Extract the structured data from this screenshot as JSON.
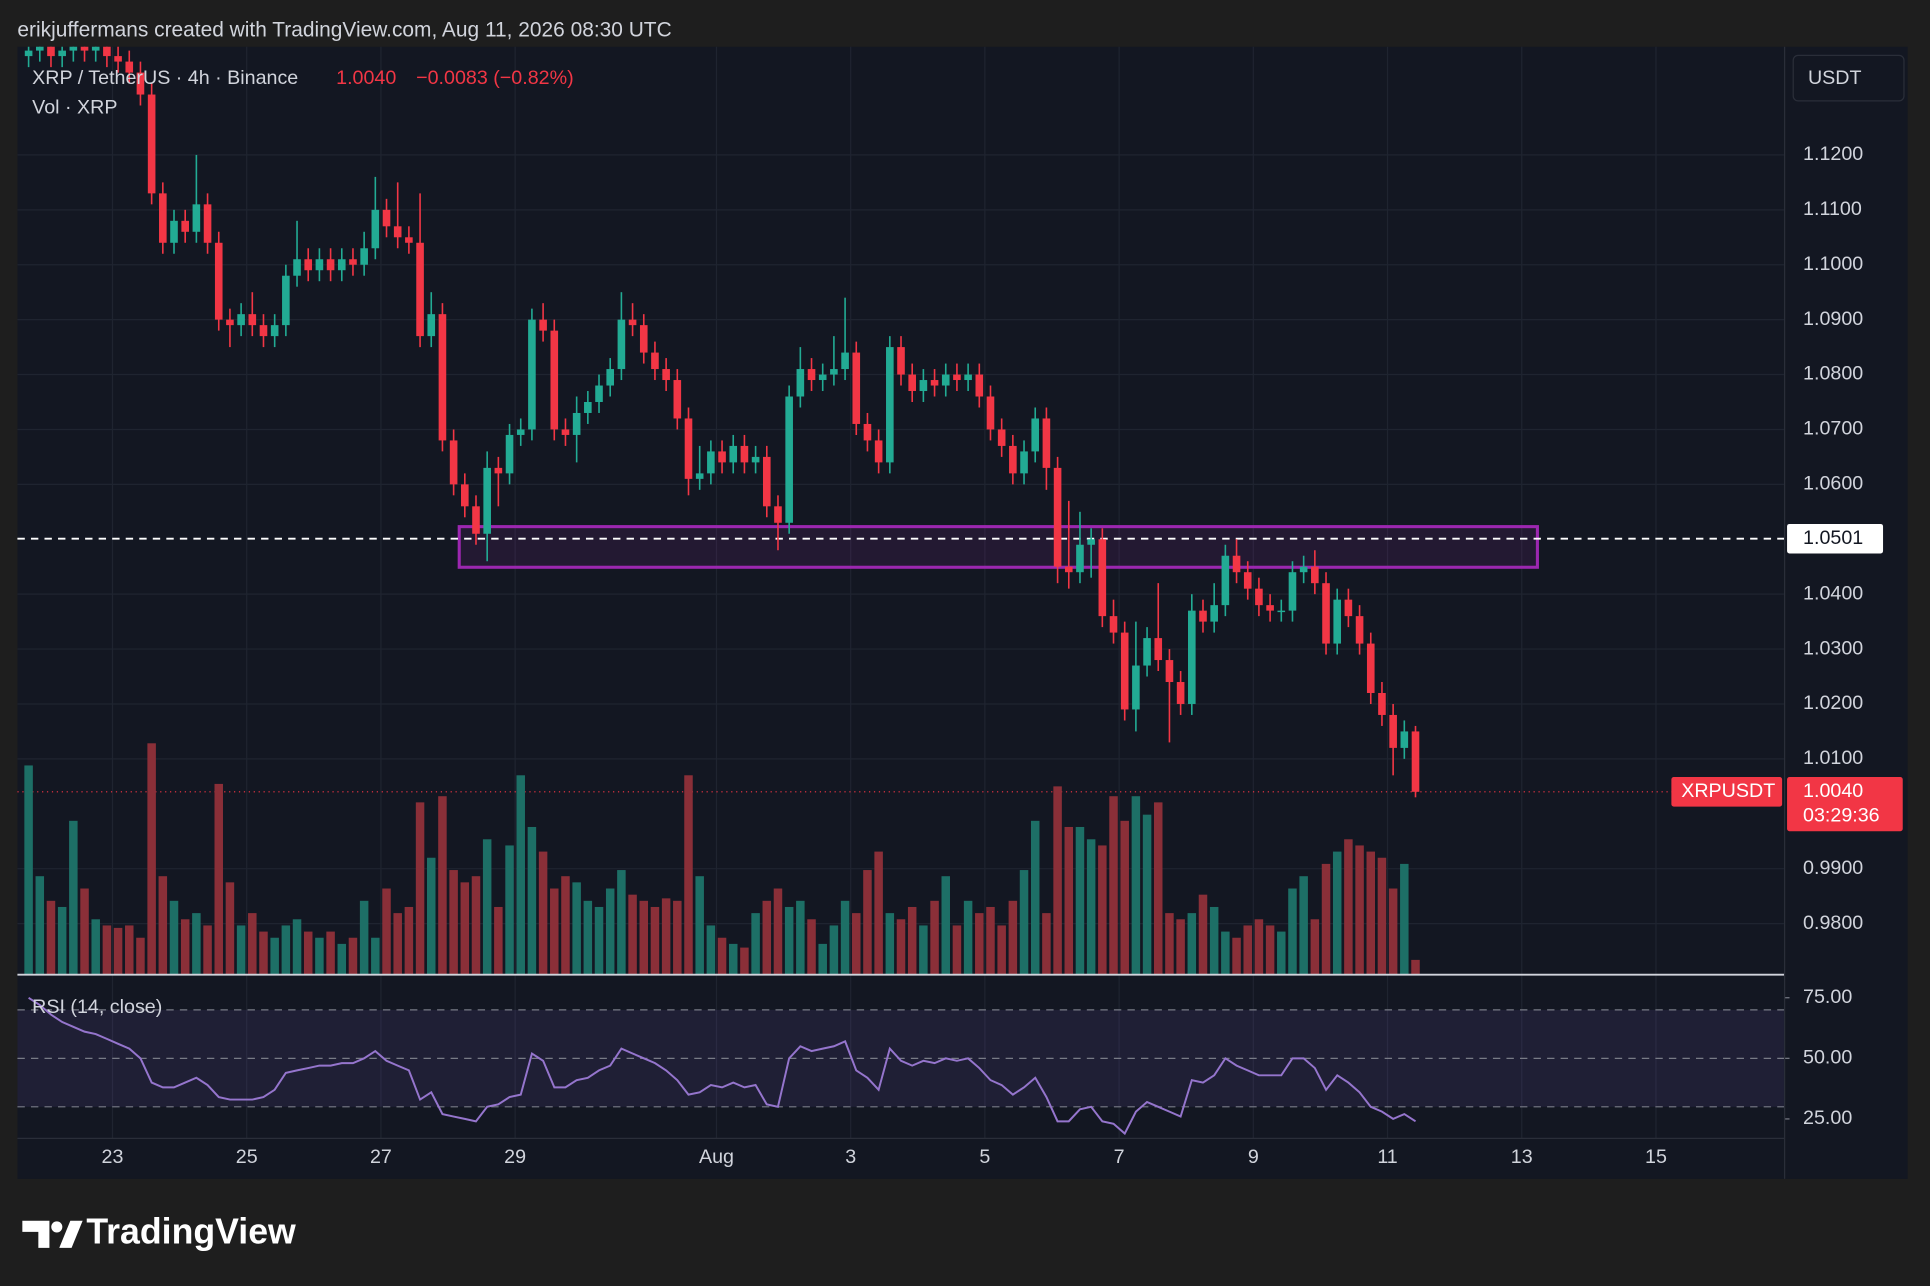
{
  "chart_data": {
    "type": "candlestick",
    "header": "erikjuffermans created with TradingView.com, Aug 11, 2026 08:30 UTC",
    "title": "XRP / TetherUS · 4h · Binance",
    "last_price": {
      "value": 1.004,
      "label": "1.0040"
    },
    "change": "−0.0083 (−0.82%)",
    "volume_title": "Vol · XRP",
    "currency": "USDT",
    "symbol": "XRPUSDT",
    "countdown": "03:29:36",
    "colors": {
      "up": "#22ab94",
      "down": "#f23645",
      "volume_up": "#1d6f66",
      "volume_down": "#8a2f38"
    },
    "open": [
      1.138,
      1.139,
      1.14,
      1.138,
      1.139,
      1.141,
      1.139,
      1.14,
      1.138,
      1.137,
      1.135,
      1.131,
      1.113,
      1.104,
      1.108,
      1.106,
      1.111,
      1.104,
      1.09,
      1.089,
      1.091,
      1.089,
      1.087,
      1.089,
      1.098,
      1.101,
      1.099,
      1.101,
      1.099,
      1.101,
      1.1,
      1.103,
      1.11,
      1.107,
      1.105,
      1.104,
      1.087,
      1.091,
      1.068,
      1.06,
      1.056,
      1.051,
      1.063,
      1.062,
      1.069,
      1.07,
      1.09,
      1.088,
      1.07,
      1.069,
      1.073,
      1.075,
      1.078,
      1.081,
      1.09,
      1.089,
      1.084,
      1.081,
      1.079,
      1.072,
      1.061,
      1.062,
      1.066,
      1.064,
      1.067,
      1.064,
      1.065,
      1.056,
      1.053,
      1.076,
      1.081,
      1.079,
      1.08,
      1.081,
      1.084,
      1.071,
      1.068,
      1.064,
      1.085,
      1.08,
      1.077,
      1.079,
      1.078,
      1.08,
      1.079,
      1.08,
      1.076,
      1.07,
      1.067,
      1.062,
      1.066,
      1.072,
      1.063,
      1.045,
      1.044,
      1.049,
      1.05,
      1.036,
      1.033,
      1.019,
      1.027,
      1.032,
      1.028,
      1.024,
      1.02,
      1.037,
      1.035,
      1.038,
      1.047,
      1.044,
      1.041,
      1.038,
      1.037,
      1.037,
      1.044,
      1.045,
      1.042,
      1.031,
      1.039,
      1.036,
      1.031,
      1.022,
      1.018,
      1.012,
      1.015
    ],
    "high": [
      1.141,
      1.142,
      1.142,
      1.141,
      1.143,
      1.143,
      1.142,
      1.142,
      1.14,
      1.139,
      1.137,
      1.133,
      1.115,
      1.11,
      1.11,
      1.12,
      1.113,
      1.106,
      1.092,
      1.093,
      1.095,
      1.091,
      1.091,
      1.1,
      1.108,
      1.103,
      1.103,
      1.103,
      1.103,
      1.103,
      1.106,
      1.116,
      1.112,
      1.115,
      1.107,
      1.113,
      1.095,
      1.093,
      1.07,
      1.062,
      1.058,
      1.066,
      1.065,
      1.071,
      1.072,
      1.092,
      1.093,
      1.09,
      1.072,
      1.076,
      1.077,
      1.08,
      1.083,
      1.095,
      1.093,
      1.091,
      1.086,
      1.083,
      1.081,
      1.074,
      1.067,
      1.068,
      1.068,
      1.069,
      1.069,
      1.067,
      1.067,
      1.058,
      1.078,
      1.085,
      1.083,
      1.082,
      1.087,
      1.094,
      1.086,
      1.073,
      1.07,
      1.087,
      1.087,
      1.082,
      1.081,
      1.081,
      1.082,
      1.082,
      1.082,
      1.082,
      1.078,
      1.072,
      1.069,
      1.068,
      1.074,
      1.074,
      1.065,
      1.057,
      1.055,
      1.052,
      1.052,
      1.039,
      1.035,
      1.035,
      1.034,
      1.042,
      1.03,
      1.026,
      1.04,
      1.039,
      1.042,
      1.049,
      1.05,
      1.046,
      1.043,
      1.04,
      1.039,
      1.046,
      1.047,
      1.048,
      1.044,
      1.041,
      1.041,
      1.038,
      1.033,
      1.024,
      1.02,
      1.017,
      1.016
    ],
    "low": [
      1.136,
      1.137,
      1.136,
      1.136,
      1.137,
      1.137,
      1.137,
      1.136,
      1.135,
      1.133,
      1.129,
      1.111,
      1.102,
      1.102,
      1.104,
      1.104,
      1.102,
      1.088,
      1.085,
      1.087,
      1.087,
      1.085,
      1.085,
      1.087,
      1.096,
      1.097,
      1.097,
      1.097,
      1.097,
      1.098,
      1.098,
      1.101,
      1.105,
      1.103,
      1.102,
      1.085,
      1.085,
      1.066,
      1.058,
      1.054,
      1.049,
      1.046,
      1.056,
      1.06,
      1.067,
      1.068,
      1.086,
      1.068,
      1.067,
      1.064,
      1.071,
      1.073,
      1.076,
      1.079,
      1.087,
      1.082,
      1.079,
      1.077,
      1.07,
      1.058,
      1.059,
      1.06,
      1.062,
      1.062,
      1.062,
      1.062,
      1.054,
      1.048,
      1.051,
      1.074,
      1.077,
      1.077,
      1.078,
      1.079,
      1.069,
      1.066,
      1.062,
      1.062,
      1.078,
      1.075,
      1.075,
      1.076,
      1.076,
      1.077,
      1.077,
      1.074,
      1.068,
      1.065,
      1.06,
      1.06,
      1.064,
      1.059,
      1.042,
      1.041,
      1.042,
      1.043,
      1.034,
      1.031,
      1.017,
      1.015,
      1.025,
      1.026,
      1.013,
      1.018,
      1.018,
      1.033,
      1.033,
      1.036,
      1.042,
      1.039,
      1.036,
      1.035,
      1.035,
      1.035,
      1.042,
      1.04,
      1.029,
      1.029,
      1.034,
      1.029,
      1.02,
      1.016,
      1.007,
      1.01,
      1.003
    ],
    "close": [
      1.139,
      1.14,
      1.138,
      1.139,
      1.141,
      1.139,
      1.14,
      1.138,
      1.137,
      1.135,
      1.131,
      1.113,
      1.104,
      1.108,
      1.106,
      1.111,
      1.104,
      1.09,
      1.089,
      1.091,
      1.089,
      1.087,
      1.089,
      1.098,
      1.101,
      1.099,
      1.101,
      1.099,
      1.101,
      1.1,
      1.103,
      1.11,
      1.107,
      1.105,
      1.104,
      1.087,
      1.091,
      1.068,
      1.06,
      1.056,
      1.051,
      1.063,
      1.062,
      1.069,
      1.07,
      1.09,
      1.088,
      1.07,
      1.069,
      1.073,
      1.075,
      1.078,
      1.081,
      1.09,
      1.089,
      1.084,
      1.081,
      1.079,
      1.072,
      1.061,
      1.062,
      1.066,
      1.064,
      1.067,
      1.064,
      1.065,
      1.056,
      1.053,
      1.076,
      1.081,
      1.079,
      1.08,
      1.081,
      1.084,
      1.071,
      1.068,
      1.064,
      1.085,
      1.08,
      1.077,
      1.079,
      1.078,
      1.08,
      1.079,
      1.08,
      1.076,
      1.07,
      1.067,
      1.062,
      1.066,
      1.072,
      1.063,
      1.045,
      1.044,
      1.049,
      1.05,
      1.036,
      1.033,
      1.019,
      1.027,
      1.032,
      1.028,
      1.024,
      1.02,
      1.037,
      1.035,
      1.038,
      1.047,
      1.044,
      1.041,
      1.038,
      1.037,
      1.037,
      1.044,
      1.045,
      1.042,
      1.031,
      1.039,
      1.036,
      1.031,
      1.022,
      1.018,
      1.012,
      1.015,
      1.004
    ],
    "volume": [
      170,
      80,
      60,
      55,
      125,
      70,
      45,
      40,
      38,
      40,
      30,
      188,
      80,
      60,
      45,
      50,
      40,
      155,
      75,
      40,
      50,
      35,
      30,
      40,
      45,
      35,
      30,
      35,
      25,
      30,
      60,
      30,
      70,
      50,
      55,
      140,
      95,
      145,
      85,
      75,
      80,
      110,
      55,
      105,
      162,
      120,
      100,
      70,
      80,
      75,
      60,
      55,
      70,
      85,
      65,
      60,
      55,
      62,
      60,
      162,
      80,
      40,
      30,
      25,
      22,
      50,
      60,
      70,
      55,
      60,
      45,
      25,
      40,
      60,
      50,
      85,
      100,
      50,
      45,
      55,
      40,
      60,
      80,
      40,
      60,
      50,
      55,
      40,
      60,
      85,
      125,
      50,
      153,
      120,
      120,
      110,
      105,
      145,
      125,
      145,
      130,
      140,
      50,
      45,
      50,
      65,
      55,
      35,
      30,
      40,
      45,
      40,
      35,
      70,
      80,
      45,
      90,
      100,
      110,
      105,
      100,
      95,
      70,
      90,
      12
    ],
    "xlim": [
      -1,
      157
    ],
    "xticks": [
      {
        "value": 7.5,
        "label": "23"
      },
      {
        "value": 19.5,
        "label": "25"
      },
      {
        "value": 31.5,
        "label": "27"
      },
      {
        "value": 43.5,
        "label": "29"
      },
      {
        "value": 61.5,
        "label": "Aug"
      },
      {
        "value": 73.5,
        "label": "3"
      },
      {
        "value": 85.5,
        "label": "5"
      },
      {
        "value": 97.5,
        "label": "7"
      },
      {
        "value": 109.5,
        "label": "9"
      },
      {
        "value": 121.5,
        "label": "11"
      },
      {
        "value": 133.5,
        "label": "13"
      },
      {
        "value": 145.5,
        "label": "15"
      }
    ],
    "ylim": [
      0.9707,
      1.1397
    ],
    "yticks": [
      {
        "value": 0.98,
        "label": "0.9800"
      },
      {
        "value": 0.99,
        "label": "0.9900"
      },
      {
        "value": 1.01,
        "label": "1.0100"
      },
      {
        "value": 1.02,
        "label": "1.0200"
      },
      {
        "value": 1.03,
        "label": "1.0300"
      },
      {
        "value": 1.04,
        "label": "1.0400"
      },
      {
        "value": 1.06,
        "label": "1.0600"
      },
      {
        "value": 1.07,
        "label": "1.0700"
      },
      {
        "value": 1.08,
        "label": "1.0800"
      },
      {
        "value": 1.09,
        "label": "1.0900"
      },
      {
        "value": 1.1,
        "label": "1.1000"
      },
      {
        "value": 1.11,
        "label": "1.1100"
      },
      {
        "value": 1.12,
        "label": "1.1200"
      }
    ],
    "grid": true,
    "hline": {
      "value": 1.0501,
      "label": "1.0501"
    },
    "zone": {
      "x": [
        38.5,
        134.9
      ],
      "y": [
        1.0449,
        1.0523
      ],
      "color": "#9c27b0"
    },
    "rsi": {
      "title": "RSI (14, close)",
      "color": "#9575cd",
      "values": [
        75,
        72,
        68,
        65,
        63,
        61,
        60,
        58,
        56,
        54,
        50,
        40,
        38,
        38,
        40,
        42,
        39,
        34,
        33,
        33,
        33,
        34,
        37,
        44,
        45,
        46,
        47,
        47,
        48,
        48,
        50,
        53,
        49,
        47,
        45,
        33,
        36,
        27,
        26,
        25,
        24,
        30,
        31,
        34,
        35,
        52,
        49,
        38,
        38,
        41,
        42,
        45,
        47,
        54,
        52,
        50,
        48,
        45,
        41,
        35,
        36,
        39,
        38,
        40,
        38,
        39,
        31,
        30,
        50,
        55,
        53,
        54,
        55,
        57,
        45,
        42,
        37,
        54,
        49,
        47,
        49,
        48,
        50,
        49,
        50,
        46,
        41,
        39,
        35,
        38,
        42,
        34,
        24,
        24,
        29,
        30,
        24,
        23,
        19,
        28,
        32,
        30,
        28,
        26,
        41,
        40,
        43,
        50,
        47,
        45,
        43,
        43,
        43,
        50,
        50,
        46,
        37,
        43,
        40,
        36,
        30,
        28,
        25,
        27,
        24
      ],
      "ylim": [
        17,
        83
      ],
      "yticks": [
        {
          "value": 75,
          "label": "75.00"
        },
        {
          "value": 50,
          "label": "50.00"
        },
        {
          "value": 25,
          "label": "25.00"
        }
      ],
      "bands": [
        70,
        50,
        30
      ]
    }
  },
  "brand": "TradingView"
}
